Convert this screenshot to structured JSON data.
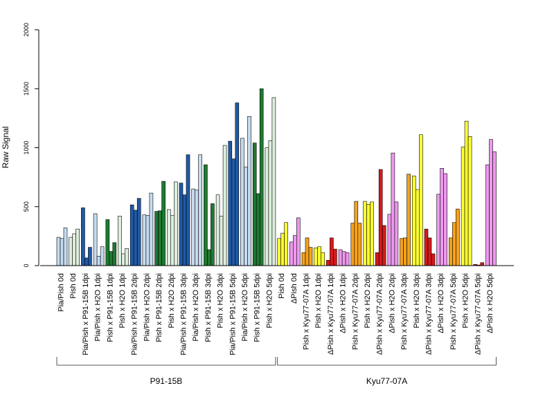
{
  "chart_data": {
    "type": "bar",
    "title": "",
    "ylabel": "Raw Signal",
    "xlabel": "",
    "ylim": [
      0,
      2000
    ],
    "yticks": [
      0,
      500,
      1000,
      1500,
      2000
    ],
    "grid": false,
    "categories": [
      "Pia/Pish 0d",
      "Pish 0d",
      "Pia/Pish x P91-15B 1dpi",
      "Pia/Pish x H2O 1dpi",
      "Pish x P91-15B 1dpi",
      "Pish x H2O 1dpi",
      "Pia/Pish x P91-15B 2dpi",
      "Pia/Pish x H2O 2dpi",
      "Pish x P91-15B 2dpi",
      "Pish x H2O 2dpi",
      "Pia/Pish x P91-15B 3dpi",
      "Pia/Pish x H2O 3dpi",
      "Pish x P91-15B 3dpi",
      "Pish x H2O 3dpi",
      "Pia/Pish x P91-15B 5dpi",
      "Pia/Pish x H2O 5dpi",
      "Pish x P91-15B 5dpi",
      "Pish x H2O 5dpi",
      "Pish 0d",
      "ΔPish 0d",
      "Pish x Kyu77-07A 1dpi",
      "Pish x H2O 1dpi",
      "ΔPish x Kyu77-07A 1dpi",
      "ΔPish x H2O 1dpi",
      "Pish x Kyu77-07A 2dpi",
      "Pish x H2O 2dpi",
      "ΔPish x Kyu77-07A 2dpi",
      "ΔPish x H2O 2dpi",
      "Pish x Kyu77-07A 3dpi",
      "Pish x H2O 3dpi",
      "ΔPish x Kyu77-07A 3dpi",
      "ΔPish x H2O 3dpi",
      "Pish x Kyu77-07A 5dpi",
      "Pish x H2O 5dpi",
      "ΔPish x Kyu77-07A 5dpi",
      "ΔPish x H2O 5dpi"
    ],
    "colors": [
      "#c6dbef",
      "#ddeedd",
      "#1f5aa6",
      "#c6dbef",
      "#1f7a32",
      "#ddeedd",
      "#1f5aa6",
      "#c6dbef",
      "#1f7a32",
      "#ddeedd",
      "#1f5aa6",
      "#c6dbef",
      "#1f7a32",
      "#ddeedd",
      "#1f5aa6",
      "#c6dbef",
      "#1f7a32",
      "#ddeedd",
      "#ffff33",
      "#ee99ee",
      "#f7a21b",
      "#ffff33",
      "#d7191c",
      "#ee99ee",
      "#f7a21b",
      "#ffff33",
      "#d7191c",
      "#ee99ee",
      "#f7a21b",
      "#ffff33",
      "#d7191c",
      "#ee99ee",
      "#f7a21b",
      "#ffff33",
      "#d7191c",
      "#ee99ee"
    ],
    "values": [
      [
        240,
        230,
        320
      ],
      [
        240,
        270,
        310
      ],
      [
        490,
        65,
        155
      ],
      [
        440,
        80,
        160
      ],
      [
        390,
        120,
        195
      ],
      [
        420,
        100,
        145
      ],
      [
        515,
        470,
        570
      ],
      [
        430,
        425,
        615
      ],
      [
        460,
        465,
        715
      ],
      [
        475,
        425,
        710
      ],
      [
        700,
        600,
        940
      ],
      [
        650,
        640,
        940
      ],
      [
        855,
        135,
        525
      ],
      [
        600,
        420,
        1020
      ],
      [
        1055,
        905,
        1380
      ],
      [
        1080,
        835,
        1265
      ],
      [
        1040,
        610,
        1500
      ],
      [
        1000,
        1060,
        1425
      ],
      [
        230,
        275,
        365
      ],
      [
        200,
        255,
        405
      ],
      [
        110,
        235,
        155
      ],
      [
        150,
        160,
        110
      ],
      [
        45,
        235,
        140
      ],
      [
        135,
        120,
        110
      ],
      [
        360,
        545,
        360
      ],
      [
        545,
        520,
        540
      ],
      [
        110,
        815,
        340
      ],
      [
        435,
        955,
        540
      ],
      [
        230,
        235,
        775
      ],
      [
        760,
        645,
        1110
      ],
      [
        310,
        235,
        100
      ],
      [
        605,
        825,
        780
      ],
      [
        235,
        365,
        480
      ],
      [
        1005,
        1225,
        1095
      ],
      [
        10,
        5,
        25
      ],
      [
        855,
        1070,
        965
      ]
    ],
    "groups": [
      {
        "label": "P91-15B",
        "from": 0,
        "to": 17
      },
      {
        "label": "Kyu77-07A",
        "from": 18,
        "to": 35
      }
    ]
  }
}
